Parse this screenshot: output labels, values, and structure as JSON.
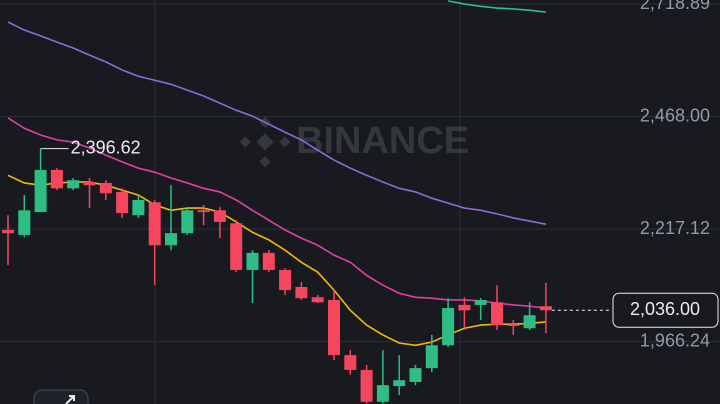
{
  "chart_data": {
    "type": "candlestick",
    "watermark": "BINANCE",
    "ylim": [
      1827,
      2728
    ],
    "yticks": [
      {
        "value": 2718.89,
        "label": "2,718.89"
      },
      {
        "value": 2468.0,
        "label": "2,468.00"
      },
      {
        "value": 2217.12,
        "label": "2,217.12"
      },
      {
        "value": 1966.24,
        "label": "1,966.24"
      }
    ],
    "grid": true,
    "up_color": "#2ebd85",
    "down_color": "#f6465d",
    "open": [
      2215,
      2204,
      2255,
      2349,
      2308,
      2322,
      2320,
      2300,
      2248,
      2277,
      2181,
      2208,
      2259,
      2259,
      2230,
      2126,
      2164,
      2126,
      2088,
      2065,
      2059,
      1936,
      1903,
      1832,
      1867,
      1876,
      1907,
      1958,
      2048,
      2048,
      2054,
      2005,
      1996,
      2045
    ],
    "high": [
      2248,
      2293,
      2396.62,
      2353,
      2331,
      2331,
      2326,
      2308,
      2293,
      2282,
      2315,
      2264,
      2271,
      2266,
      2237,
      2170,
      2170,
      2130,
      2099,
      2070,
      2081,
      1947,
      1914,
      1947,
      1936,
      1914,
      1981,
      2063,
      2065,
      2063,
      2092,
      2014,
      2054,
      2097
    ],
    "low": [
      2137,
      2199,
      2255,
      2304,
      2304,
      2264,
      2282,
      2242,
      2242,
      2092,
      2170,
      2204,
      2226,
      2197,
      2121,
      2052,
      2121,
      2070,
      2059,
      2052,
      1925,
      1892,
      1828,
      1828,
      1847,
      1869,
      1898,
      1954,
      1992,
      2014,
      1992,
      1981,
      1992,
      1985
    ],
    "close": [
      2208,
      2259,
      2349,
      2308,
      2326,
      2315,
      2297,
      2253,
      2282,
      2181,
      2208,
      2259,
      2255,
      2233,
      2126,
      2164,
      2126,
      2081,
      2063,
      2054,
      1936,
      1903,
      1832,
      1869,
      1880,
      1907,
      1958,
      2041,
      2036,
      2059,
      2003,
      2001,
      2025,
      2036
    ],
    "ma_lines": [
      {
        "color": "#f0b90b",
        "values": [
          2337,
          2320,
          2315,
          2320,
          2322,
          2322,
          2315,
          2304,
          2293,
          2271,
          2259,
          2264,
          2264,
          2255,
          2233,
          2210,
          2193,
          2170,
          2143,
          2121,
          2081,
          2036,
          2003,
          1981,
          1963,
          1958,
          1965,
          1981,
          1996,
          2003,
          2005,
          2005,
          2007,
          2010
        ]
      },
      {
        "color": "#e13fa5",
        "values": [
          2465,
          2442,
          2427,
          2416,
          2411,
          2398,
          2382,
          2367,
          2353,
          2344,
          2331,
          2320,
          2308,
          2300,
          2282,
          2259,
          2237,
          2215,
          2197,
          2181,
          2159,
          2143,
          2114,
          2092,
          2074,
          2065,
          2063,
          2059,
          2059,
          2057,
          2052,
          2048,
          2045,
          2041
        ]
      },
      {
        "color": "#8e6bd8",
        "values": [
          2679,
          2661,
          2648,
          2634,
          2621,
          2605,
          2590,
          2572,
          2558,
          2549,
          2540,
          2527,
          2514,
          2498,
          2482,
          2469,
          2451,
          2433,
          2416,
          2393,
          2371,
          2353,
          2337,
          2322,
          2308,
          2300,
          2286,
          2275,
          2264,
          2259,
          2251,
          2242,
          2235,
          2228
        ]
      },
      {
        "color": "#2ebd85",
        "values": [
          null,
          null,
          null,
          null,
          null,
          null,
          null,
          null,
          null,
          null,
          null,
          null,
          null,
          null,
          null,
          null,
          null,
          null,
          null,
          null,
          null,
          null,
          null,
          null,
          null,
          null,
          null,
          2726,
          2719,
          2714,
          2710,
          2708,
          2705,
          2701
        ]
      }
    ],
    "high_label": {
      "value": 2396.62,
      "label": "2,396.62"
    },
    "last_price": {
      "value": 2036.0,
      "label": "2,036.00"
    }
  }
}
